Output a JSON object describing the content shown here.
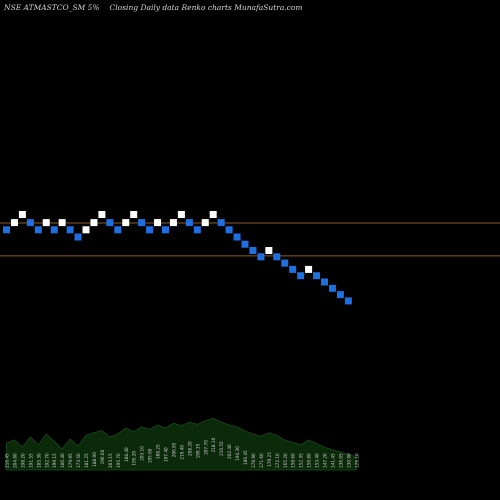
{
  "header": {
    "symbol": "NSE ATMASTCO_SM 5%",
    "description": "Closing Daily data Renko charts MunafaSutra.com"
  },
  "chart_data": {
    "type": "renko",
    "box_size_percent": 5,
    "colors": {
      "up": "#ffffff",
      "down": "#1f6fe0",
      "reference_line": "#8b5a2b",
      "volume_area": "#0a2a0a",
      "volume_line": "#cfcfcf",
      "background": "#000000"
    },
    "reference_lines": [
      {
        "name": "line-upper",
        "level": 9.25
      },
      {
        "name": "line-lower",
        "level": 5.6
      }
    ],
    "bricks": [
      {
        "dir": "down",
        "level": 8.5
      },
      {
        "dir": "up",
        "level": 9.3
      },
      {
        "dir": "up",
        "level": 10.2
      },
      {
        "dir": "down",
        "level": 9.3
      },
      {
        "dir": "down",
        "level": 8.5
      },
      {
        "dir": "up",
        "level": 9.3
      },
      {
        "dir": "down",
        "level": 8.5
      },
      {
        "dir": "up",
        "level": 9.3
      },
      {
        "dir": "down",
        "level": 8.5
      },
      {
        "dir": "down",
        "level": 7.7
      },
      {
        "dir": "up",
        "level": 8.5
      },
      {
        "dir": "up",
        "level": 9.3
      },
      {
        "dir": "up",
        "level": 10.2
      },
      {
        "dir": "down",
        "level": 9.3
      },
      {
        "dir": "down",
        "level": 8.5
      },
      {
        "dir": "up",
        "level": 9.3
      },
      {
        "dir": "up",
        "level": 10.2
      },
      {
        "dir": "down",
        "level": 9.3
      },
      {
        "dir": "down",
        "level": 8.5
      },
      {
        "dir": "up",
        "level": 9.3
      },
      {
        "dir": "down",
        "level": 8.5
      },
      {
        "dir": "up",
        "level": 9.3
      },
      {
        "dir": "up",
        "level": 10.2
      },
      {
        "dir": "down",
        "level": 9.3
      },
      {
        "dir": "down",
        "level": 8.5
      },
      {
        "dir": "up",
        "level": 9.3
      },
      {
        "dir": "up",
        "level": 10.2
      },
      {
        "dir": "down",
        "level": 9.3
      },
      {
        "dir": "down",
        "level": 8.5
      },
      {
        "dir": "down",
        "level": 7.7
      },
      {
        "dir": "down",
        "level": 6.9
      },
      {
        "dir": "down",
        "level": 6.2
      },
      {
        "dir": "down",
        "level": 5.5
      },
      {
        "dir": "up",
        "level": 6.2
      },
      {
        "dir": "down",
        "level": 5.5
      },
      {
        "dir": "down",
        "level": 4.8
      },
      {
        "dir": "down",
        "level": 4.1
      },
      {
        "dir": "down",
        "level": 3.4
      },
      {
        "dir": "up",
        "level": 4.1
      },
      {
        "dir": "down",
        "level": 3.4
      },
      {
        "dir": "down",
        "level": 2.7
      },
      {
        "dir": "down",
        "level": 2.0
      },
      {
        "dir": "down",
        "level": 1.3
      },
      {
        "dir": "down",
        "level": 0.6
      }
    ],
    "volume_labels": [
      "210.45",
      "204.80",
      "198.20",
      "191.55",
      "185.30",
      "192.70",
      "199.15",
      "186.40",
      "179.95",
      "173.50",
      "181.25",
      "188.90",
      "196.60",
      "203.15",
      "195.70",
      "188.40",
      "195.20",
      "203.10",
      "195.60",
      "188.25",
      "197.40",
      "206.85",
      "216.40",
      "208.20",
      "199.35",
      "207.70",
      "218.10",
      "210.55",
      "202.40",
      "194.30",
      "186.45",
      "178.90",
      "171.60",
      "179.25",
      "172.10",
      "165.20",
      "158.60",
      "152.35",
      "159.80",
      "153.40",
      "147.20",
      "141.45",
      "136.05",
      "130.90",
      "126.10"
    ],
    "volume_level": [
      0.45,
      0.5,
      0.38,
      0.55,
      0.42,
      0.6,
      0.48,
      0.35,
      0.52,
      0.4,
      0.58,
      0.62,
      0.66,
      0.55,
      0.6,
      0.7,
      0.64,
      0.72,
      0.68,
      0.75,
      0.7,
      0.78,
      0.74,
      0.8,
      0.76,
      0.82,
      0.86,
      0.8,
      0.75,
      0.72,
      0.65,
      0.6,
      0.56,
      0.62,
      0.58,
      0.5,
      0.46,
      0.42,
      0.5,
      0.44,
      0.38,
      0.34,
      0.3,
      0.26,
      0.22
    ]
  }
}
